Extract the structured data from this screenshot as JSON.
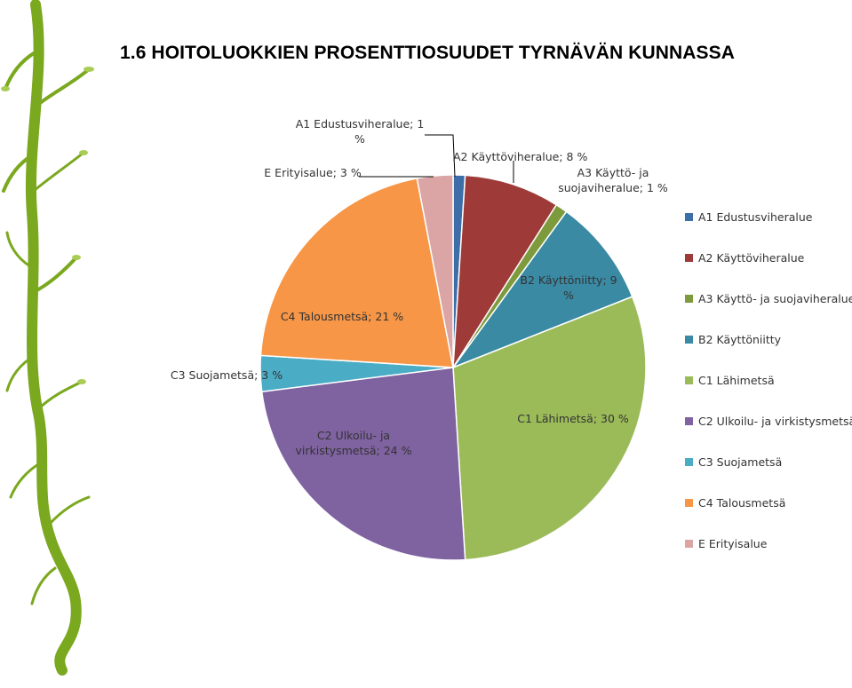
{
  "title": "1.6 HOITOLUOKKIEN PROSENTTIOSUUDET TYRNÄVÄN KUNNASSA",
  "decoration": {
    "icon": "green-branch-icon",
    "color": "#7aa81e"
  },
  "chart_data": {
    "type": "pie",
    "title": "",
    "legend_position": "right",
    "start_angle_deg": 0,
    "direction": "clockwise",
    "slices": [
      {
        "name": "A1 Edustusviheralue",
        "value": 1,
        "color": "#3e6ea8",
        "label_lines": [
          "A1 Edustusviheralue; 1",
          "%"
        ]
      },
      {
        "name": "A2 Käyttöviheralue",
        "value": 8,
        "color": "#9e3b38",
        "label_lines": [
          "A2 Käyttöviheralue; 8 %"
        ]
      },
      {
        "name": "A3 Käyttö- ja suojaviheralue",
        "value": 1,
        "color": "#7d9a3c",
        "label_lines": [
          "A3 Käyttö- ja",
          "suojaviheralue; 1 %"
        ]
      },
      {
        "name": "B2 Käyttöniitty",
        "value": 9,
        "color": "#3a8aa4",
        "label_lines": [
          "B2 Käyttöniitty; 9",
          "%"
        ]
      },
      {
        "name": "C1 Lähimetsä",
        "value": 30,
        "color": "#9bbb59",
        "label_lines": [
          "C1 Lähimetsä; 30 %"
        ]
      },
      {
        "name": "C2 Ulkoilu- ja virkistysmetsä",
        "value": 24,
        "color": "#7f62a0",
        "label_lines": [
          "C2 Ulkoilu- ja",
          "virkistysmetsä; 24 %"
        ]
      },
      {
        "name": "C3 Suojametsä",
        "value": 3,
        "color": "#4bacc6",
        "label_lines": [
          "C3 Suojametsä; 3 %"
        ]
      },
      {
        "name": "C4 Talousmetsä",
        "value": 21,
        "color": "#f79646",
        "label_lines": [
          "C4 Talousmetsä; 21 %"
        ]
      },
      {
        "name": "E Erityisalue",
        "value": 3,
        "color": "#dba5a5",
        "label_lines": [
          "E Erityisalue; 3 %"
        ]
      }
    ]
  }
}
